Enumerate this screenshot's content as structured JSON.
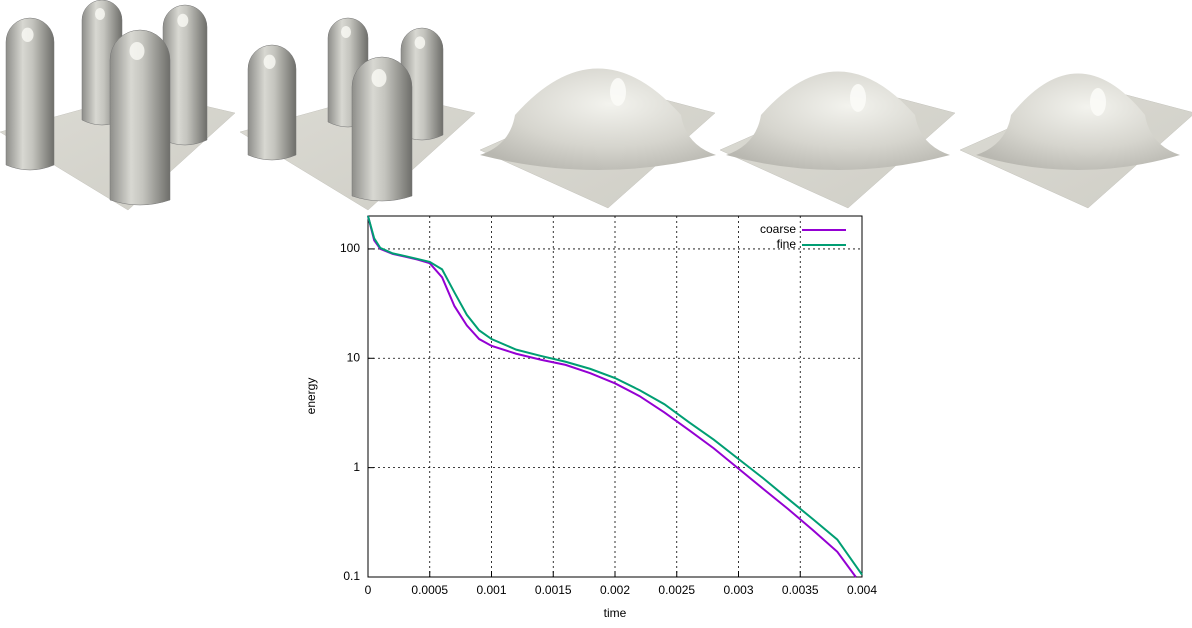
{
  "chart_data": {
    "type": "line",
    "xlabel": "time",
    "ylabel": "energy",
    "xlim": [
      0,
      0.004
    ],
    "ylim": [
      0.1,
      200
    ],
    "xticks": [
      0,
      0.0005,
      0.001,
      0.0015,
      0.002,
      0.0025,
      0.003,
      0.0035,
      0.004
    ],
    "yticks": [
      0.1,
      1,
      10,
      100
    ],
    "log_y": true,
    "grid": true,
    "legend": "top-right",
    "series": [
      {
        "name": "coarse",
        "color": "#9400d3",
        "x": [
          0,
          5e-05,
          0.0001,
          0.0002,
          0.0003,
          0.0004,
          0.0005,
          0.0006,
          0.0007,
          0.0008,
          0.0009,
          0.001,
          0.0012,
          0.0014,
          0.0016,
          0.0018,
          0.002,
          0.0022,
          0.0024,
          0.0026,
          0.0028,
          0.003,
          0.0032,
          0.0034,
          0.0036,
          0.0038,
          0.00395
        ],
        "values": [
          200,
          120,
          100,
          90,
          85,
          80,
          74,
          55,
          30,
          20,
          15,
          13,
          11,
          9.7,
          8.7,
          7.3,
          5.9,
          4.5,
          3.2,
          2.2,
          1.5,
          0.98,
          0.64,
          0.42,
          0.27,
          0.17,
          0.1
        ]
      },
      {
        "name": "fine",
        "color": "#009e73",
        "x": [
          0,
          5e-05,
          0.0001,
          0.0002,
          0.0003,
          0.0004,
          0.0005,
          0.0006,
          0.0007,
          0.0008,
          0.0009,
          0.001,
          0.0012,
          0.0014,
          0.0016,
          0.0018,
          0.002,
          0.0022,
          0.0024,
          0.0026,
          0.0028,
          0.003,
          0.0032,
          0.0034,
          0.0036,
          0.0038,
          0.004
        ],
        "values": [
          200,
          125,
          102,
          91,
          86,
          81,
          76,
          65,
          40,
          25,
          18,
          15,
          12,
          10.5,
          9.3,
          8,
          6.6,
          5.1,
          3.8,
          2.6,
          1.8,
          1.2,
          0.8,
          0.52,
          0.34,
          0.22,
          0.105
        ]
      }
    ]
  }
}
